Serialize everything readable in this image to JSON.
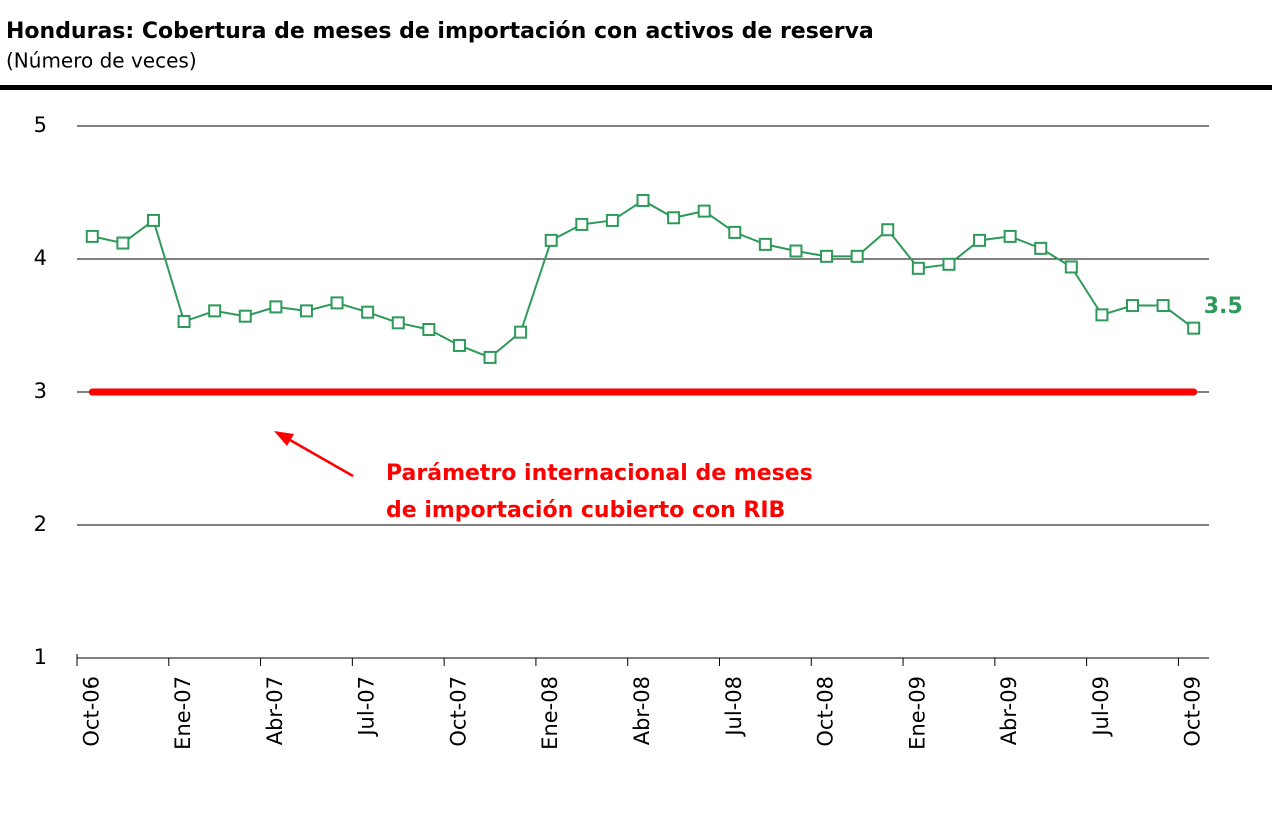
{
  "chart_data": {
    "type": "line",
    "title": "Honduras: Cobertura de meses de importación con activos de reserva",
    "subtitle": "(Número de veces)",
    "categories": [
      "Oct-06",
      null,
      null,
      "Ene-07",
      null,
      null,
      "Abr-07",
      null,
      null,
      "Jul-07",
      null,
      null,
      "Oct-07",
      null,
      null,
      "Ene-08",
      null,
      null,
      "Abr-08",
      null,
      null,
      "Jul-08",
      null,
      null,
      "Oct-08",
      null,
      null,
      "Ene-09",
      null,
      null,
      "Abr-09",
      null,
      null,
      "Jul-09",
      null,
      null,
      "Oct-09"
    ],
    "series": [
      {
        "color": "#2e9a5a",
        "values": [
          4.17,
          4.12,
          4.29,
          3.53,
          3.61,
          3.57,
          3.64,
          3.61,
          3.67,
          3.6,
          3.52,
          3.47,
          3.35,
          3.26,
          3.45,
          4.14,
          4.26,
          4.29,
          4.44,
          4.31,
          4.36,
          4.2,
          4.11,
          4.06,
          4.02,
          4.02,
          4.22,
          3.93,
          3.96,
          4.14,
          4.17,
          4.08,
          3.94,
          3.58,
          3.65,
          3.65,
          3.48
        ],
        "value_labels": [
          null,
          null,
          null,
          null,
          null,
          null,
          null,
          null,
          null,
          null,
          null,
          null,
          null,
          null,
          null,
          null,
          null,
          null,
          null,
          null,
          null,
          null,
          null,
          null,
          null,
          null,
          null,
          null,
          null,
          null,
          null,
          null,
          null,
          null,
          null,
          null,
          "3.5"
        ]
      }
    ],
    "reference_line": {
      "value": 3,
      "color": "#ff0000"
    },
    "annotation": [
      "Parámetro internacional de meses",
      "de importación cubierto con RIB"
    ],
    "ylim": [
      1,
      5
    ],
    "yticks": [
      1,
      2,
      3,
      4,
      5
    ],
    "grid": true
  }
}
